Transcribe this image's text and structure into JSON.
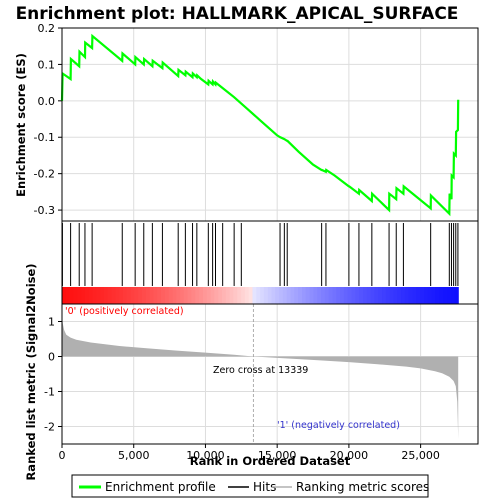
{
  "colors": {
    "es_line": "#00ff00",
    "hits": "#000000",
    "metric_fill": "#b0b0b0",
    "pos_label": "#ff0000",
    "neg_label": "#3333cc",
    "heat_pos": "#ff0000",
    "heat_neg": "#0000ff",
    "grid": "#dddddd"
  },
  "chart_data": [
    {
      "type": "line",
      "panel": "enrichment",
      "title": "Enrichment plot: HALLMARK_APICAL_SURFACE",
      "ylabel": "Enrichment score (ES)",
      "xlim": [
        0,
        29000
      ],
      "ylim": [
        -0.33,
        0.2
      ],
      "yticks": [
        0.2,
        0.1,
        0.0,
        -0.1,
        -0.2,
        -0.3
      ],
      "ytick_labels": [
        "0.2",
        "0.1",
        "0.0",
        "-0.1",
        "-0.2",
        "-0.3"
      ],
      "grid": true,
      "series": [
        {
          "name": "Enrichment profile",
          "x": [
            0,
            40,
            600,
            620,
            1200,
            1220,
            1600,
            1620,
            2100,
            2120,
            4200,
            4220,
            5100,
            5120,
            5700,
            5720,
            6300,
            6320,
            7000,
            7020,
            8100,
            8120,
            8600,
            8620,
            9100,
            9120,
            9400,
            9420,
            9700,
            10200,
            10220,
            10500,
            10520,
            10700,
            10720,
            11200,
            12000,
            13000,
            14000,
            15000,
            15200,
            15220,
            15500,
            15700,
            15720,
            16500,
            17500,
            18100,
            18120,
            18400,
            18420,
            19000,
            20000,
            20020,
            20700,
            20720,
            21600,
            21620,
            22800,
            22820,
            23300,
            23320,
            23800,
            23820,
            25700,
            25720,
            27000,
            27020,
            27150,
            27170,
            27300,
            27320,
            27450,
            27470,
            27600,
            27620
          ],
          "y": [
            0.0,
            0.075,
            0.06,
            0.115,
            0.095,
            0.135,
            0.12,
            0.16,
            0.145,
            0.178,
            0.11,
            0.13,
            0.1,
            0.12,
            0.1,
            0.115,
            0.095,
            0.11,
            0.09,
            0.105,
            0.068,
            0.085,
            0.07,
            0.08,
            0.065,
            0.075,
            0.065,
            0.07,
            0.06,
            0.045,
            0.055,
            0.045,
            0.053,
            0.045,
            0.05,
            0.035,
            0.01,
            -0.025,
            -0.06,
            -0.095,
            -0.1,
            -0.1,
            -0.105,
            -0.11,
            -0.11,
            -0.14,
            -0.175,
            -0.19,
            -0.19,
            -0.195,
            -0.19,
            -0.205,
            -0.235,
            -0.235,
            -0.255,
            -0.245,
            -0.275,
            -0.255,
            -0.3,
            -0.255,
            -0.27,
            -0.24,
            -0.255,
            -0.235,
            -0.295,
            -0.26,
            -0.31,
            -0.255,
            -0.27,
            -0.205,
            -0.21,
            -0.145,
            -0.15,
            -0.085,
            -0.08,
            0.003
          ]
        }
      ]
    },
    {
      "type": "line",
      "panel": "hits",
      "xlim": [
        0,
        29000
      ],
      "series": [
        {
          "name": "Hits",
          "x": [
            30,
            600,
            1200,
            1600,
            2100,
            4200,
            5100,
            5700,
            6300,
            7000,
            8100,
            8600,
            9100,
            9400,
            10200,
            10500,
            10700,
            11200,
            12000,
            12500,
            15200,
            15500,
            15700,
            18100,
            18400,
            20000,
            20700,
            21600,
            22800,
            23300,
            23800,
            25700,
            27000,
            27150,
            27300,
            27450,
            27600
          ]
        }
      ]
    },
    {
      "type": "area",
      "panel": "ranked_metric",
      "ylabel": "Ranked list metric (Signal2Noise)",
      "xlabel": "Rank in Ordered Dataset",
      "xlim": [
        0,
        29000
      ],
      "ylim": [
        -2.5,
        1.5
      ],
      "yticks": [
        1,
        0,
        -1,
        -2
      ],
      "ytick_labels": [
        "1",
        "0",
        "-1",
        "-2"
      ],
      "xticks": [
        0,
        5000,
        10000,
        15000,
        20000,
        25000
      ],
      "xtick_labels": [
        "0",
        "5,000",
        "10,000",
        "15,000",
        "20,000",
        "25,000"
      ],
      "grid": true,
      "zero_cross": 13339,
      "series": [
        {
          "name": "Ranking metric scores",
          "x": [
            0,
            50,
            150,
            300,
            600,
            1000,
            2000,
            4000,
            6000,
            8000,
            10000,
            12000,
            13339,
            15000,
            18000,
            20000,
            22000,
            24000,
            25000,
            26000,
            26500,
            27000,
            27300,
            27450,
            27560,
            27620
          ],
          "y": [
            1.2,
            0.95,
            0.75,
            0.62,
            0.54,
            0.48,
            0.4,
            0.3,
            0.23,
            0.17,
            0.11,
            0.05,
            0.0,
            -0.04,
            -0.11,
            -0.16,
            -0.22,
            -0.29,
            -0.34,
            -0.42,
            -0.48,
            -0.58,
            -0.7,
            -0.85,
            -1.3,
            -2.35
          ]
        }
      ]
    }
  ],
  "annotations": {
    "pos_label": "'0' (positively correlated)",
    "neg_label": "'1' (negatively correlated)",
    "zero_cross_label": "Zero cross at 13339"
  },
  "legend": {
    "items": [
      {
        "label": "Enrichment profile",
        "swatch": "es"
      },
      {
        "label": "Hits",
        "swatch": "hit"
      },
      {
        "label": "Ranking metric scores",
        "swatch": "metric"
      }
    ]
  }
}
